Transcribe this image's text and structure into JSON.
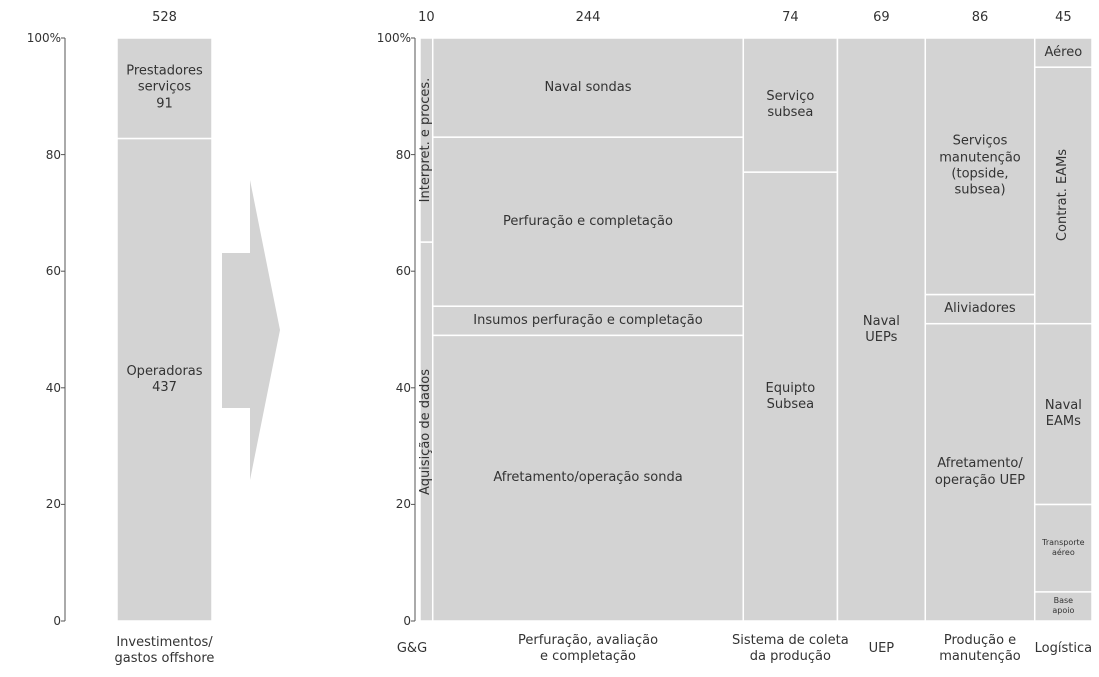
{
  "chart_data": [
    {
      "type": "stacked-bar",
      "total": 528,
      "category": "Investimentos/\ngastos offshore",
      "series": [
        {
          "name": "Operadoras",
          "value": 437
        },
        {
          "name": "Prestadores\nserviços",
          "value": 91
        }
      ],
      "ylim": [
        0,
        100
      ],
      "yticks": [
        0,
        20,
        40,
        60,
        80,
        {
          "value": 100,
          "label": "100%"
        }
      ],
      "color": "#d3d3d3"
    },
    {
      "type": "marimekko",
      "ylim": [
        0,
        100
      ],
      "yticks": [
        0,
        20,
        40,
        60,
        80,
        {
          "value": 100,
          "label": "100%"
        }
      ],
      "color": "#d3d3d3",
      "columns": [
        {
          "category": "G&G",
          "width": 10,
          "segments": [
            {
              "name": "Aquisição de dados",
              "value": 65,
              "vertical": true
            },
            {
              "name": "Interpret. e proces.",
              "value": 35,
              "vertical": true
            }
          ]
        },
        {
          "category": "Perfuração, avaliação\ne completação",
          "width": 244,
          "segments": [
            {
              "name": "Afretamento/operação sonda",
              "value": 49
            },
            {
              "name": "Insumos perfuração e completação",
              "value": 5
            },
            {
              "name": "Perfuração e completação",
              "value": 29
            },
            {
              "name": "Naval sondas",
              "value": 17
            }
          ]
        },
        {
          "category": "Sistema de coleta\nda produção",
          "width": 74,
          "segments": [
            {
              "name": "Equipto\nSubsea",
              "value": 77
            },
            {
              "name": "Serviço\nsubsea",
              "value": 23
            }
          ]
        },
        {
          "category": "UEP",
          "width": 69,
          "segments": [
            {
              "name": "Naval\nUEPs",
              "value": 100
            }
          ]
        },
        {
          "category": "Produção e\nmanutenção",
          "width": 86,
          "segments": [
            {
              "name": "Afretamento/\noperação UEP",
              "value": 51
            },
            {
              "name": "Aliviadores",
              "value": 5
            },
            {
              "name": "Serviços\nmanutenção\n(topside,\nsubsea)",
              "value": 44
            }
          ]
        },
        {
          "category": "Logística",
          "width": 45,
          "segments": [
            {
              "name": "Base apoio",
              "value": 5,
              "small": true
            },
            {
              "name": "Transporte\naéreo",
              "value": 15,
              "small": true
            },
            {
              "name": "Naval\nEAMs",
              "value": 31
            },
            {
              "name": "Contrat. EAMs",
              "value": 44,
              "vertical": true
            },
            {
              "name": "Aéreo",
              "value": 5
            }
          ]
        }
      ]
    }
  ]
}
